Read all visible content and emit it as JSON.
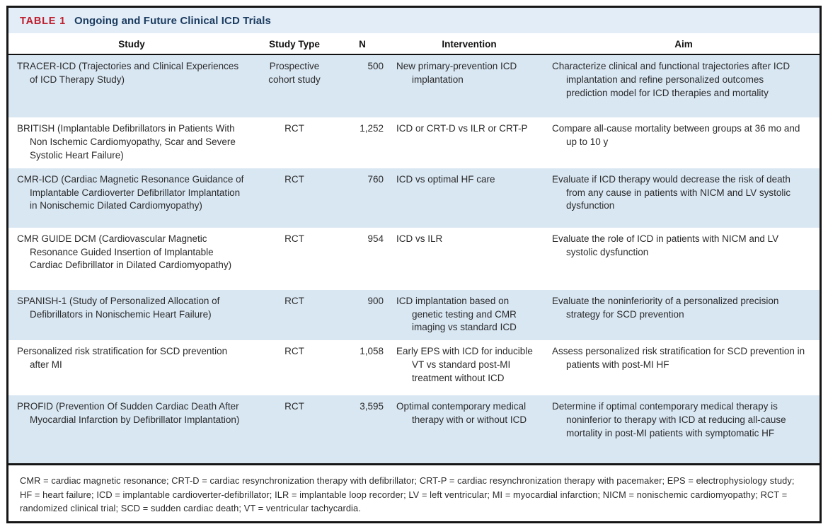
{
  "table": {
    "label": "TABLE 1",
    "title": "Ongoing and Future Clinical ICD Trials",
    "columns": [
      "Study",
      "Study Type",
      "N",
      "Intervention",
      "Aim"
    ],
    "rows": [
      {
        "study": "TRACER-ICD (Trajectories and Clinical Experiences of ICD Therapy Study)",
        "study_type": "Prospective cohort study",
        "n": "500",
        "intervention": "New primary-prevention ICD implantation",
        "aim": "Characterize clinical and functional trajectories after ICD implantation and refine personalized outcomes prediction model for ICD therapies and mortality"
      },
      {
        "study": "BRITISH (Implantable Defibrillators in Patients With Non Ischemic Cardiomyopathy, Scar and Severe Systolic Heart Failure)",
        "study_type": "RCT",
        "n": "1,252",
        "intervention": "ICD or CRT-D vs ILR or CRT-P",
        "aim": "Compare all-cause mortality between groups at 36 mo and up to 10 y"
      },
      {
        "study": "CMR-ICD (Cardiac Magnetic Resonance Guidance of Implantable Cardioverter Defibrillator Implantation in Nonischemic Dilated Cardiomyopathy)",
        "study_type": "RCT",
        "n": "760",
        "intervention": "ICD vs optimal HF care",
        "aim": "Evaluate if ICD therapy would decrease the risk of death from any cause in patients with NICM and LV systolic dysfunction"
      },
      {
        "study": "CMR GUIDE DCM (Cardiovascular Magnetic Resonance Guided Insertion of Implantable Cardiac Defibrillator in Dilated Cardiomyopathy)",
        "study_type": "RCT",
        "n": "954",
        "intervention": "ICD vs ILR",
        "aim": "Evaluate the role of ICD in patients with NICM and LV systolic dysfunction"
      },
      {
        "study": "SPANISH-1 (Study of Personalized Allocation of Defibrillators in Nonischemic Heart Failure)",
        "study_type": "RCT",
        "n": "900",
        "intervention": "ICD implantation based on genetic testing and CMR imaging vs standard ICD",
        "aim": "Evaluate the noninferiority of a personalized precision strategy for SCD prevention"
      },
      {
        "study": "Personalized risk stratification for SCD prevention after MI",
        "study_type": "RCT",
        "n": "1,058",
        "intervention": "Early EPS with ICD for inducible VT vs standard post-MI treatment without ICD",
        "aim": "Assess personalized risk stratification for SCD prevention in patients with post-MI HF"
      },
      {
        "study": "PROFID (Prevention Of Sudden Cardiac Death After Myocardial Infarction by Defibrillator Implantation)",
        "study_type": "RCT",
        "n": "3,595",
        "intervention": "Optimal contemporary medical therapy with or without ICD",
        "aim": "Determine if optimal contemporary medical therapy is noninferior to therapy with ICD at reducing all-cause mortality in post-MI patients with symptomatic HF"
      }
    ],
    "footnote": "CMR = cardiac magnetic resonance; CRT-D = cardiac resynchronization therapy with defibrillator; CRT-P = cardiac resynchronization therapy with pacemaker; EPS = electrophysiology study; HF = heart failure; ICD = implantable cardioverter-defibrillator; ILR = implantable loop recorder; LV = left ventricular; MI = myocardial infarction; NICM = nonischemic cardiomyopathy; RCT = randomized clinical trial; SCD = sudden cardiac death; VT = ventricular tachycardia."
  },
  "colors": {
    "row_shade": "#d9e7f3",
    "title_band": "#e2edf7",
    "label_red": "#be1e2d",
    "title_navy": "#1b3b5f",
    "border_black": "#161616"
  }
}
